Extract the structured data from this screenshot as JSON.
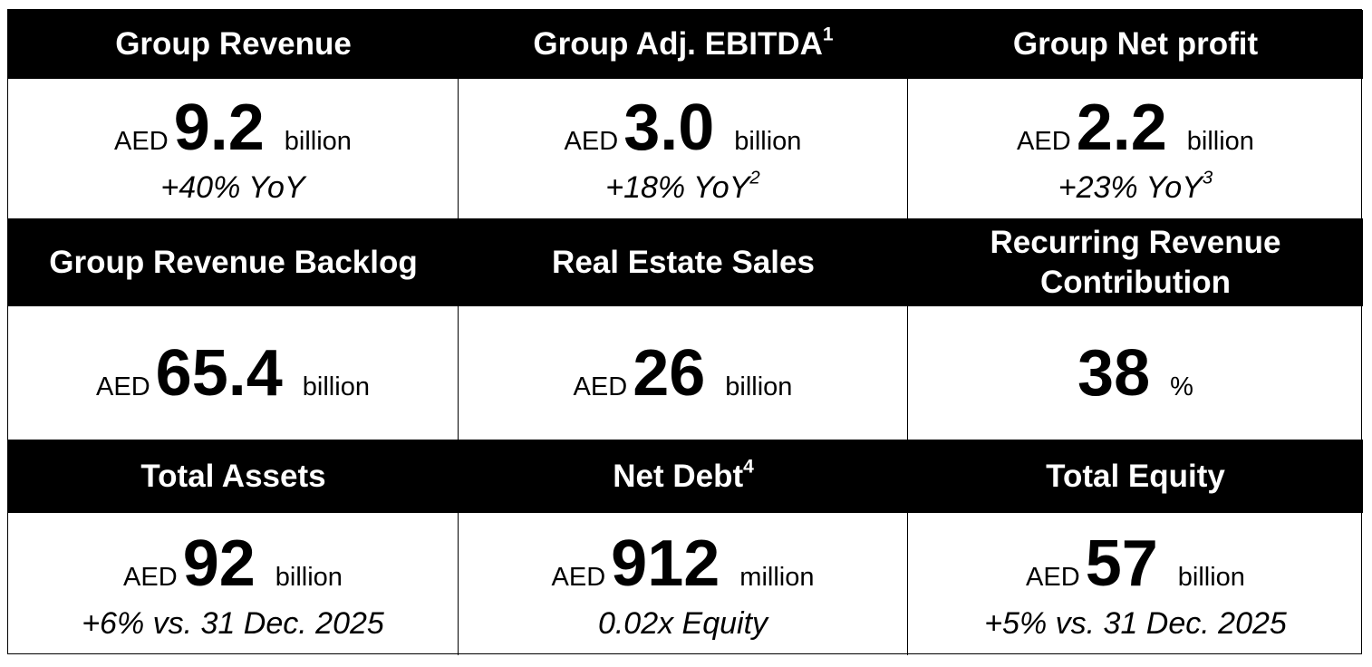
{
  "metrics": [
    {
      "title": "Group Revenue",
      "prefix": "AED",
      "value": "9.2",
      "unit": "billion",
      "note": "+40% YoY"
    },
    {
      "title": "Group Adj. EBITDA",
      "title_sup": "1",
      "prefix": "AED",
      "value": "3.0",
      "unit": "billion",
      "note": "+18% YoY",
      "note_sup": "2"
    },
    {
      "title": "Group Net profit",
      "prefix": "AED",
      "value": "2.2",
      "unit": "billion",
      "note": "+23% YoY",
      "note_sup": "3"
    },
    {
      "title": "Group Revenue Backlog",
      "prefix": "AED",
      "value": "65.4",
      "unit": "billion"
    },
    {
      "title": "Real Estate Sales",
      "prefix": "AED",
      "value": "26",
      "unit": "billion"
    },
    {
      "title": "Recurring Revenue Contribution",
      "value": "38",
      "unit": "%"
    },
    {
      "title": "Total Assets",
      "prefix": "AED",
      "value": "92",
      "unit": "billion",
      "note": "+6% vs. 31 Dec. 2025"
    },
    {
      "title": "Net Debt",
      "title_sup": "4",
      "prefix": "AED",
      "value": "912",
      "unit": "million",
      "note": "0.02x Equity"
    },
    {
      "title": "Total Equity",
      "prefix": "AED",
      "value": "57",
      "unit": "billion",
      "note": "+5% vs. 31 Dec. 2025"
    }
  ]
}
